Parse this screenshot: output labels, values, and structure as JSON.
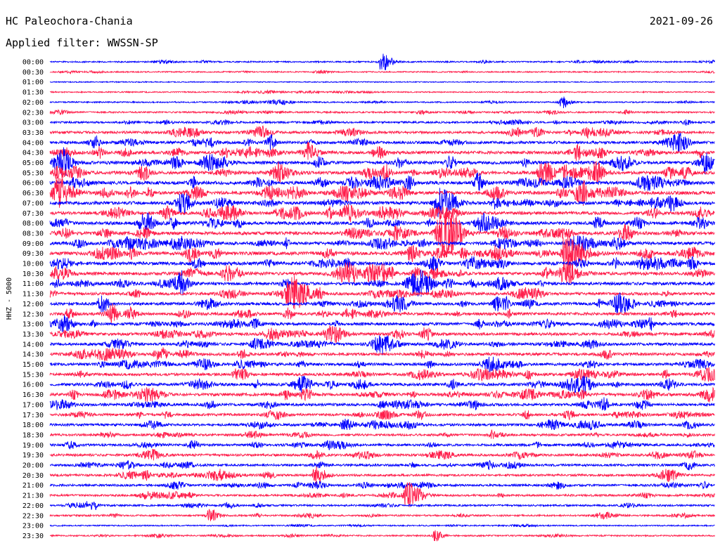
{
  "header": {
    "station": "HC Paleochora-Chania",
    "date": "2021-09-26",
    "filter": "Applied filter: WWSSN-SP"
  },
  "chart_data": {
    "type": "line",
    "ylabel": "HHZ - 5000",
    "colors": [
      "#0000ff",
      "#ff1e4b"
    ],
    "row_labels": [
      "00:00",
      "00:30",
      "01:00",
      "01:30",
      "02:00",
      "02:30",
      "03:00",
      "03:30",
      "04:00",
      "04:30",
      "05:00",
      "05:30",
      "06:00",
      "06:30",
      "07:00",
      "07:30",
      "08:00",
      "08:30",
      "09:00",
      "09:30",
      "10:00",
      "10:30",
      "11:00",
      "11:30",
      "12:00",
      "12:30",
      "13:00",
      "13:30",
      "14:00",
      "14:30",
      "15:00",
      "15:30",
      "16:00",
      "16:30",
      "17:00",
      "17:30",
      "18:00",
      "18:30",
      "19:00",
      "19:30",
      "20:00",
      "20:30",
      "21:00",
      "21:30",
      "22:00",
      "22:30",
      "23:00",
      "23:30"
    ],
    "activity": [
      0.8,
      0.6,
      0.15,
      0.5,
      0.7,
      1.2,
      1.6,
      2.4,
      2.8,
      3.2,
      3.4,
      3.6,
      3.6,
      3.8,
      3.6,
      3.4,
      3.6,
      3.6,
      3.4,
      3.8,
      3.6,
      3.4,
      3.2,
      3.0,
      3.2,
      3.0,
      3.0,
      3.0,
      2.8,
      3.0,
      2.8,
      2.8,
      3.0,
      3.0,
      2.6,
      2.4,
      2.4,
      2.0,
      2.2,
      2.2,
      2.2,
      2.0,
      2.0,
      1.8,
      1.4,
      1.2,
      0.6,
      0.9
    ],
    "events": [
      {
        "row": 0,
        "x": 0.5,
        "amp": 12
      },
      {
        "row": 4,
        "x": 0.77,
        "amp": 8
      },
      {
        "row": 9,
        "x": 0.39,
        "amp": 10
      },
      {
        "row": 11,
        "x": 0.74,
        "amp": 16
      },
      {
        "row": 13,
        "x": 0.01,
        "amp": 22
      },
      {
        "row": 14,
        "x": 0.59,
        "amp": 20
      },
      {
        "row": 17,
        "x": 0.59,
        "amp": 24
      },
      {
        "row": 19,
        "x": 0.78,
        "amp": 26
      },
      {
        "row": 23,
        "x": 0.36,
        "amp": 12
      },
      {
        "row": 24,
        "x": 0.67,
        "amp": 10
      },
      {
        "row": 41,
        "x": 0.4,
        "amp": 12
      },
      {
        "row": 43,
        "x": 0.54,
        "amp": 18
      },
      {
        "row": 45,
        "x": 0.24,
        "amp": 9
      },
      {
        "row": 47,
        "x": 0.58,
        "amp": 7
      }
    ]
  }
}
